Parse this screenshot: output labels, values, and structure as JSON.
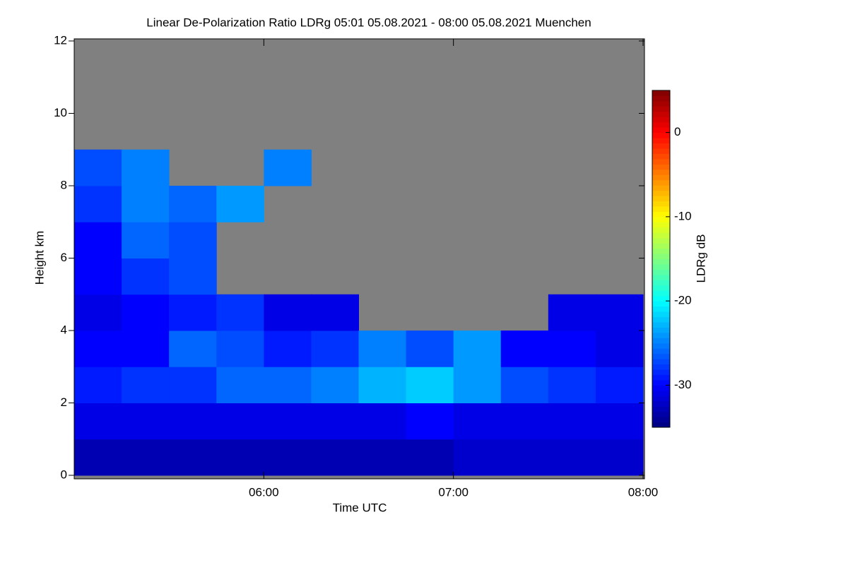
{
  "chart_data": {
    "type": "heatmap",
    "title": "Linear De-Polarization Ratio LDRg   05:01 05.08.2021 - 08:00 05.08.2021 Muenchen",
    "xlabel": "Time UTC",
    "ylabel": "Height km",
    "xlim": [
      5.0,
      8.0
    ],
    "xticks": [
      {
        "value": 6,
        "label": "06:00"
      },
      {
        "value": 7,
        "label": "07:00"
      },
      {
        "value": 8,
        "label": "08:00"
      }
    ],
    "ylim": [
      0,
      12
    ],
    "yticks": [
      0,
      2,
      4,
      6,
      8,
      10,
      12
    ],
    "xbins": [
      5.0,
      5.25,
      5.5,
      5.75,
      6.0,
      6.25,
      6.5,
      6.75,
      7.0,
      7.25,
      7.5,
      7.75,
      8.0
    ],
    "ybins": [
      0,
      1,
      2,
      3,
      4,
      5,
      6,
      7,
      8,
      9,
      10,
      11,
      12
    ],
    "values": [
      [
        -33,
        -33,
        -33,
        -33,
        -33,
        -33,
        -33,
        -33,
        -32,
        -32,
        -32,
        -32
      ],
      [
        -31,
        -31,
        -31,
        -31,
        -31,
        -31,
        -31,
        -30,
        -31,
        -31,
        -31,
        -31
      ],
      [
        -29,
        -28,
        -28,
        -26,
        -26,
        -25,
        -23,
        -22,
        -24,
        -27,
        -28,
        -29
      ],
      [
        -30,
        -30,
        -26,
        -27,
        -29,
        -28,
        -25,
        -27,
        -24,
        -30,
        -30,
        -31
      ],
      [
        -31,
        -30,
        -29,
        -28,
        -31,
        -31,
        null,
        null,
        null,
        null,
        -31,
        -31
      ],
      [
        -30,
        -28,
        -27,
        null,
        null,
        null,
        null,
        null,
        null,
        null,
        null,
        null
      ],
      [
        -30,
        -26,
        -27,
        null,
        null,
        null,
        null,
        null,
        null,
        null,
        null,
        null
      ],
      [
        -28,
        -25,
        -26,
        -24,
        null,
        null,
        null,
        null,
        null,
        null,
        null,
        null
      ],
      [
        -27,
        -25,
        null,
        null,
        -25,
        null,
        null,
        null,
        null,
        null,
        null,
        null
      ],
      [
        null,
        null,
        null,
        null,
        null,
        null,
        null,
        null,
        null,
        null,
        null,
        null
      ],
      [
        null,
        null,
        null,
        null,
        null,
        null,
        null,
        null,
        null,
        null,
        null,
        null
      ],
      [
        null,
        null,
        null,
        null,
        null,
        null,
        null,
        null,
        null,
        null,
        null,
        null
      ]
    ],
    "missing_color": "#808080",
    "colormap": "jet",
    "clim": [
      -35,
      5
    ],
    "cticks": [
      0,
      -10,
      -20,
      -30
    ],
    "clabel": "LDRg dB"
  }
}
